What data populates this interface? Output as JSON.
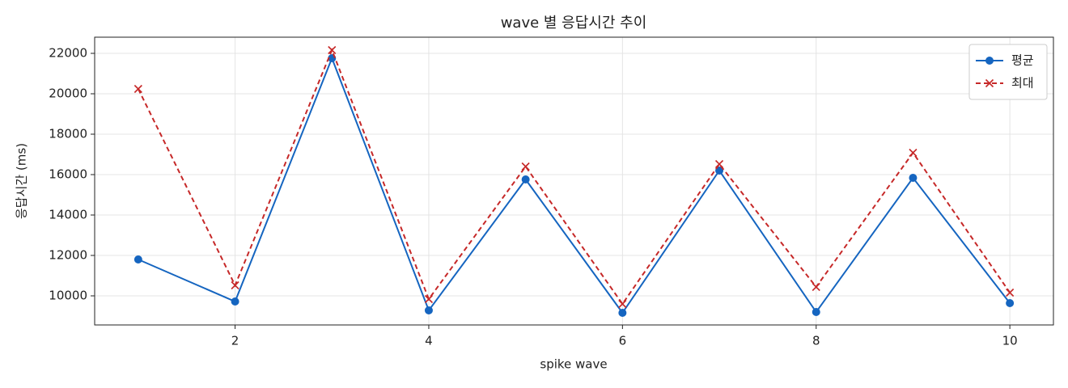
{
  "chart_data": {
    "type": "line",
    "title": "wave 별 응답시간 추이",
    "xlabel": "spike wave",
    "ylabel": "응답시간 (ms)",
    "x": [
      1,
      2,
      3,
      4,
      5,
      6,
      7,
      8,
      9,
      10
    ],
    "series": [
      {
        "name": "평균",
        "color": "#1565c0",
        "marker": "o",
        "linestyle": "solid",
        "values": [
          11800,
          9720,
          21760,
          9280,
          15760,
          9160,
          16200,
          9200,
          15840,
          9640
        ]
      },
      {
        "name": "최대",
        "color": "#c62828",
        "marker": "x",
        "linestyle": "dashed",
        "values": [
          20240,
          10520,
          22160,
          9840,
          16400,
          9600,
          16520,
          10440,
          17080,
          10160
        ]
      }
    ],
    "xlim": [
      0.55,
      10.45
    ],
    "ylim": [
      8560,
      22800
    ],
    "xticks": [
      2,
      4,
      6,
      8,
      10
    ],
    "yticks": [
      10000,
      12000,
      14000,
      16000,
      18000,
      20000,
      22000
    ],
    "grid": true,
    "legend": "upper right"
  }
}
